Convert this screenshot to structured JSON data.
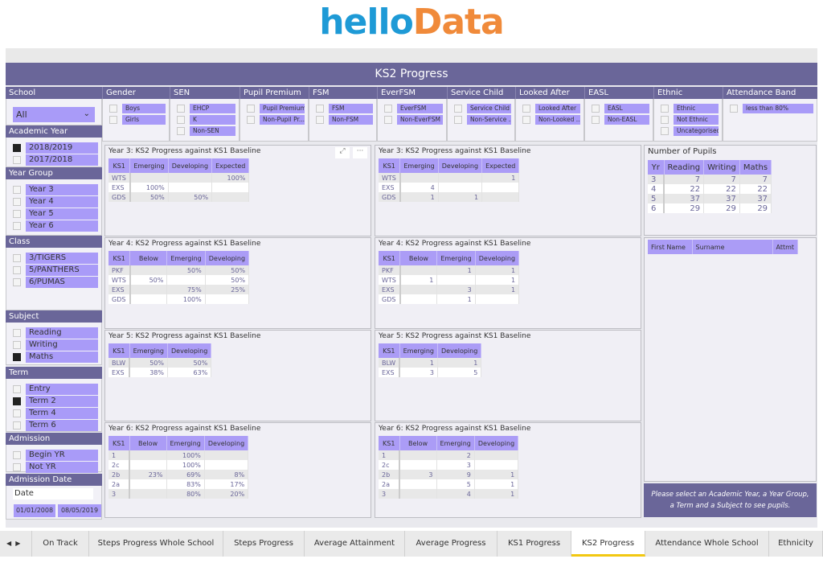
{
  "logo": {
    "part1": "hello",
    "part2": "Data"
  },
  "title": "KS2 Progress",
  "top_slicers": [
    {
      "label": "Gender",
      "items": [
        "Boys",
        "Girls"
      ]
    },
    {
      "label": "SEN",
      "items": [
        "EHCP",
        "K",
        "Non-SEN"
      ]
    },
    {
      "label": "Pupil Premium",
      "items": [
        "Pupil Premium",
        "Non-Pupil Pr..."
      ]
    },
    {
      "label": "FSM",
      "items": [
        "FSM",
        "Non-FSM"
      ]
    },
    {
      "label": "EverFSM",
      "items": [
        "EverFSM",
        "Non-EverFSM"
      ]
    },
    {
      "label": "Service Child",
      "items": [
        "Service Child",
        "Non-Service ..."
      ]
    },
    {
      "label": "Looked After",
      "items": [
        "Looked After",
        "Non-Looked ..."
      ]
    },
    {
      "label": "EASL",
      "items": [
        "EASL",
        "Non-EASL"
      ]
    },
    {
      "label": "Ethnic",
      "items": [
        "Ethnic",
        "Not Ethnic",
        "Uncategorised"
      ]
    },
    {
      "label": "Attendance Band",
      "items": [
        "less than 80%"
      ]
    }
  ],
  "school": {
    "label": "School",
    "value": "All"
  },
  "left_slicers": [
    {
      "label": "Academic Year",
      "items": [
        {
          "t": "2018/2019",
          "on": true
        },
        {
          "t": "2017/2018",
          "on": false
        }
      ]
    },
    {
      "label": "Year Group",
      "items": [
        {
          "t": "Year 3",
          "on": false
        },
        {
          "t": "Year 4",
          "on": false
        },
        {
          "t": "Year 5",
          "on": false
        },
        {
          "t": "Year 6",
          "on": false
        }
      ]
    },
    {
      "label": "Class",
      "items": [
        {
          "t": "3/TIGERS",
          "on": false
        },
        {
          "t": "5/PANTHERS",
          "on": false
        },
        {
          "t": "6/PUMAS",
          "on": false
        }
      ]
    },
    {
      "label": "Subject",
      "items": [
        {
          "t": "Reading",
          "on": false
        },
        {
          "t": "Writing",
          "on": false
        },
        {
          "t": "Maths",
          "on": true
        }
      ]
    },
    {
      "label": "Term",
      "items": [
        {
          "t": "Entry",
          "on": false
        },
        {
          "t": "Term 2",
          "on": true
        },
        {
          "t": "Term 4",
          "on": false
        },
        {
          "t": "Term 6",
          "on": false
        }
      ]
    },
    {
      "label": "Admission",
      "items": [
        {
          "t": "Begin YR",
          "on": false
        },
        {
          "t": "Not YR",
          "on": false
        }
      ]
    }
  ],
  "admission_date": {
    "label": "Admission Date",
    "field": "Date",
    "from": "01/01/2008",
    "to": "08/05/2019"
  },
  "tiles": [
    {
      "title": "Year 3: KS2 Progress against KS1 Baseline",
      "cols": [
        "KS1",
        "Emerging",
        "Developing",
        "Expected"
      ],
      "rows": [
        [
          "WTS",
          "",
          "",
          "100%"
        ],
        [
          "EXS",
          "100%",
          "",
          ""
        ],
        [
          "GDS",
          "50%",
          "50%",
          ""
        ]
      ]
    },
    {
      "title": "Year 3: KS2 Progress against KS1 Baseline",
      "cols": [
        "KS1",
        "Emerging",
        "Developing",
        "Expected"
      ],
      "rows": [
        [
          "WTS",
          "",
          "",
          "1"
        ],
        [
          "EXS",
          "4",
          "",
          ""
        ],
        [
          "GDS",
          "1",
          "1",
          ""
        ]
      ]
    },
    {
      "title": "Year 4: KS2 Progress against KS1 Baseline",
      "cols": [
        "KS1",
        "Below",
        "Emerging",
        "Developing"
      ],
      "rows": [
        [
          "PKF",
          "",
          "50%",
          "50%"
        ],
        [
          "WTS",
          "50%",
          "",
          "50%"
        ],
        [
          "EXS",
          "",
          "75%",
          "25%"
        ],
        [
          "GDS",
          "",
          "100%",
          ""
        ]
      ]
    },
    {
      "title": "Year 4: KS2 Progress against KS1 Baseline",
      "cols": [
        "KS1",
        "Below",
        "Emerging",
        "Developing"
      ],
      "rows": [
        [
          "PKF",
          "",
          "1",
          "1"
        ],
        [
          "WTS",
          "1",
          "",
          "1"
        ],
        [
          "EXS",
          "",
          "3",
          "1"
        ],
        [
          "GDS",
          "",
          "1",
          ""
        ]
      ]
    },
    {
      "title": "Year 5: KS2 Progress against KS1 Baseline",
      "cols": [
        "KS1",
        "Emerging",
        "Developing"
      ],
      "rows": [
        [
          "BLW",
          "50%",
          "50%"
        ],
        [
          "EXS",
          "38%",
          "63%"
        ]
      ]
    },
    {
      "title": "Year 5: KS2 Progress against KS1 Baseline",
      "cols": [
        "KS1",
        "Emerging",
        "Developing"
      ],
      "rows": [
        [
          "BLW",
          "1",
          "1"
        ],
        [
          "EXS",
          "3",
          "5"
        ]
      ]
    },
    {
      "title": "Year 6: KS2 Progress against KS1 Baseline",
      "cols": [
        "KS1",
        "Below",
        "Emerging",
        "Developing"
      ],
      "rows": [
        [
          "1",
          "",
          "100%",
          ""
        ],
        [
          "2c",
          "",
          "100%",
          ""
        ],
        [
          "2b",
          "23%",
          "69%",
          "8%"
        ],
        [
          "2a",
          "",
          "83%",
          "17%"
        ],
        [
          "3",
          "",
          "80%",
          "20%"
        ]
      ]
    },
    {
      "title": "Year 6: KS2 Progress against KS1 Baseline",
      "cols": [
        "KS1",
        "Below",
        "Emerging",
        "Developing"
      ],
      "rows": [
        [
          "1",
          "",
          "2",
          ""
        ],
        [
          "2c",
          "",
          "3",
          ""
        ],
        [
          "2b",
          "3",
          "9",
          "1"
        ],
        [
          "2a",
          "",
          "5",
          "1"
        ],
        [
          "3",
          "",
          "4",
          "1"
        ]
      ]
    }
  ],
  "pupils": {
    "title": "Number of Pupils",
    "cols": [
      "Yr",
      "Reading",
      "Writing",
      "Maths"
    ],
    "rows": [
      [
        "3",
        "7",
        "7",
        "7"
      ],
      [
        "4",
        "22",
        "22",
        "22"
      ],
      [
        "5",
        "37",
        "37",
        "37"
      ],
      [
        "6",
        "29",
        "29",
        "29"
      ]
    ]
  },
  "pupil_list": {
    "cols": [
      "First Name",
      "Surname",
      "Attmt"
    ]
  },
  "message": "Please select an Academic Year, a Year Group, a Term and a Subject to see pupils.",
  "tabs": [
    {
      "t": "On Track"
    },
    {
      "t": "Steps Progress Whole School"
    },
    {
      "t": "Steps Progress"
    },
    {
      "t": "Average Attainment"
    },
    {
      "t": "Average Progress"
    },
    {
      "t": "KS1 Progress"
    },
    {
      "t": "KS2 Progress",
      "active": true
    },
    {
      "t": "Attendance Whole School"
    },
    {
      "t": "Ethnicity"
    }
  ]
}
